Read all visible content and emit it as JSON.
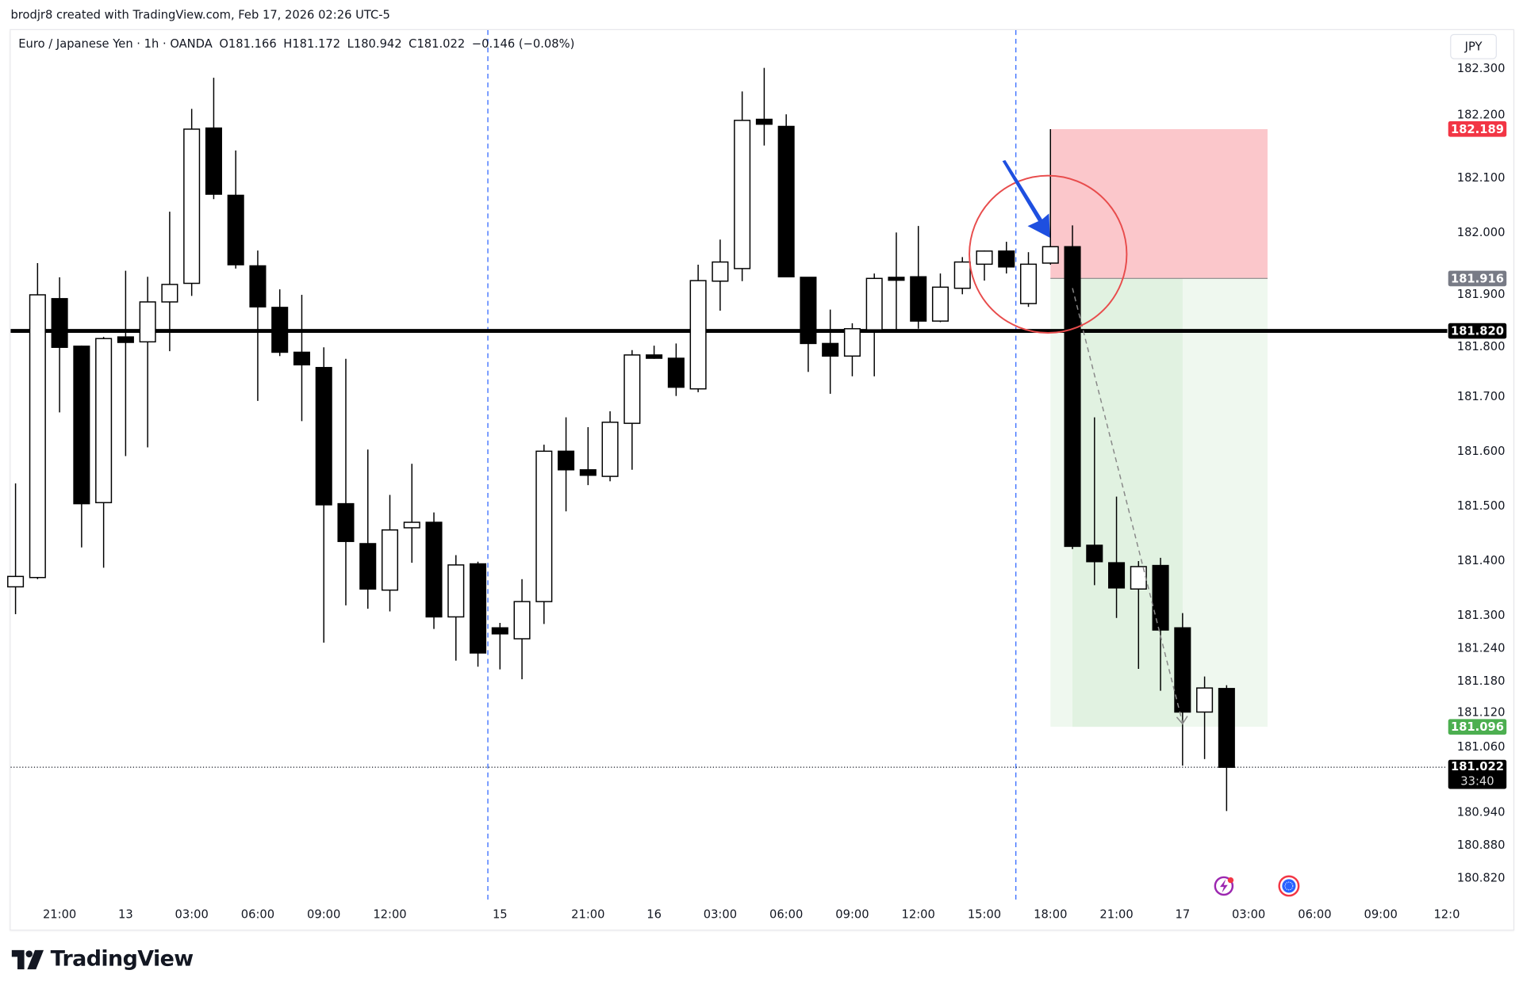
{
  "credit": "brodjr8 created with TradingView.com, Feb 17, 2026 02:26 UTC-5",
  "legend": {
    "symbol": "Euro / Japanese Yen · 1h · OANDA",
    "open": "O181.166",
    "high": "H181.172",
    "low": "L180.942",
    "close": "C181.022",
    "change": "−0.146 (−0.08%)"
  },
  "currency_button": "JPY",
  "footer": {
    "brand": "TradingView",
    "logo_icon": "tradingview-logo-icon"
  },
  "colors": {
    "bull_body": "#ffffff",
    "bear_body": "#000000",
    "stop_zone": "#f23645",
    "target_zone": "#4caf50",
    "entry_tag": "#787b86",
    "drawing_lines": "#2962ff",
    "circle": "#e84c4c"
  },
  "chart_data": {
    "type": "candlestick",
    "timeframe": "1h",
    "ylim": [
      180.78,
      182.36
    ],
    "price_ticks": [
      "182.300",
      "182.200",
      "182.100",
      "182.000",
      "181.900",
      "181.800",
      "181.700",
      "181.600",
      "181.500",
      "181.400",
      "181.300",
      "181.240",
      "181.180",
      "181.120",
      "181.060",
      "180.940",
      "180.880",
      "180.820"
    ],
    "time_ticks": [
      {
        "i": 2,
        "label": "21:00"
      },
      {
        "i": 5,
        "label": "13"
      },
      {
        "i": 8,
        "label": "03:00"
      },
      {
        "i": 11,
        "label": "06:00"
      },
      {
        "i": 14,
        "label": "09:00"
      },
      {
        "i": 17,
        "label": "12:00"
      },
      {
        "i": 22,
        "label": "15"
      },
      {
        "i": 26,
        "label": "21:00"
      },
      {
        "i": 29,
        "label": "16"
      },
      {
        "i": 32,
        "label": "03:00"
      },
      {
        "i": 35,
        "label": "06:00"
      },
      {
        "i": 38,
        "label": "09:00"
      },
      {
        "i": 41,
        "label": "12:00"
      },
      {
        "i": 44,
        "label": "15:00"
      },
      {
        "i": 47,
        "label": "18:00"
      },
      {
        "i": 50,
        "label": "21:00"
      },
      {
        "i": 53,
        "label": "17"
      },
      {
        "i": 56,
        "label": "03:00"
      },
      {
        "i": 59,
        "label": "06:00"
      },
      {
        "i": 62,
        "label": "09:00"
      },
      {
        "i": 65,
        "label": "12:0"
      }
    ],
    "candles": [
      [
        181.352,
        181.541,
        181.302,
        181.371
      ],
      [
        181.369,
        181.944,
        181.366,
        181.886
      ],
      [
        181.879,
        181.918,
        181.671,
        181.79
      ],
      [
        181.792,
        181.793,
        181.424,
        181.504
      ],
      [
        181.506,
        181.809,
        181.387,
        181.806
      ],
      [
        181.809,
        181.93,
        181.591,
        181.799
      ],
      [
        181.8,
        181.919,
        181.607,
        181.873
      ],
      [
        181.873,
        182.038,
        181.783,
        181.905
      ],
      [
        181.907,
        182.226,
        181.884,
        182.189
      ],
      [
        182.191,
        182.283,
        182.061,
        182.07
      ],
      [
        182.068,
        182.15,
        181.934,
        181.941
      ],
      [
        181.939,
        181.967,
        181.692,
        181.864
      ],
      [
        181.863,
        181.896,
        181.774,
        181.781
      ],
      [
        181.781,
        181.886,
        181.655,
        181.758
      ],
      [
        181.753,
        181.79,
        181.25,
        181.502
      ],
      [
        181.504,
        181.769,
        181.318,
        181.435
      ],
      [
        181.431,
        181.603,
        181.312,
        181.348
      ],
      [
        181.346,
        181.52,
        181.307,
        181.456
      ],
      [
        181.46,
        181.577,
        181.396,
        181.47
      ],
      [
        181.47,
        181.488,
        181.275,
        181.297
      ],
      [
        181.297,
        181.41,
        181.217,
        181.392
      ],
      [
        181.394,
        181.398,
        181.206,
        181.231
      ],
      [
        181.277,
        181.286,
        181.201,
        181.266
      ],
      [
        181.257,
        181.366,
        181.183,
        181.325
      ],
      [
        181.325,
        181.612,
        181.284,
        181.6
      ],
      [
        181.6,
        181.662,
        181.49,
        181.566
      ],
      [
        181.566,
        181.644,
        181.538,
        181.556
      ],
      [
        181.554,
        181.673,
        181.545,
        181.653
      ],
      [
        181.651,
        181.785,
        181.566,
        181.776
      ],
      [
        181.776,
        181.793,
        181.769,
        181.77
      ],
      [
        181.77,
        181.797,
        181.701,
        181.717
      ],
      [
        181.714,
        181.941,
        181.708,
        181.912
      ],
      [
        181.911,
        181.987,
        181.857,
        181.946
      ],
      [
        181.934,
        182.258,
        181.911,
        182.205
      ],
      [
        182.207,
        182.301,
        182.159,
        182.198
      ],
      [
        182.194,
        182.216,
        181.919,
        181.919
      ],
      [
        181.918,
        181.918,
        181.745,
        181.797
      ],
      [
        181.797,
        181.859,
        181.705,
        181.774
      ],
      [
        181.774,
        181.834,
        181.737,
        181.824
      ],
      [
        181.822,
        181.925,
        181.737,
        181.916
      ],
      [
        181.918,
        182.0,
        181.822,
        181.914
      ],
      [
        181.919,
        182.012,
        181.824,
        181.838
      ],
      [
        181.838,
        181.925,
        181.836,
        181.9
      ],
      [
        181.898,
        181.955,
        181.887,
        181.946
      ],
      [
        181.942,
        181.967,
        181.912,
        181.966
      ],
      [
        181.966,
        181.983,
        181.925,
        181.937
      ],
      [
        181.87,
        181.964,
        181.864,
        181.942
      ],
      [
        181.944,
        182.189,
        181.941,
        181.974
      ],
      [
        181.974,
        182.013,
        181.421,
        181.426
      ],
      [
        181.428,
        181.662,
        181.355,
        181.398
      ],
      [
        181.396,
        181.517,
        181.295,
        181.35
      ],
      [
        181.348,
        181.399,
        181.202,
        181.389
      ],
      [
        181.391,
        181.405,
        181.162,
        181.273
      ],
      [
        181.277,
        181.304,
        181.025,
        181.123
      ],
      [
        181.123,
        181.188,
        181.037,
        181.167
      ],
      [
        181.166,
        181.172,
        180.942,
        181.022
      ]
    ],
    "horizontal_line": 181.82,
    "last_price": "181.022",
    "countdown": "33:40",
    "position": {
      "side": "short",
      "entry": "181.916",
      "stop": "182.189",
      "target": "181.096"
    },
    "price_tags": [
      {
        "value": "182.189",
        "color": "#f23645"
      },
      {
        "value": "181.916",
        "color": "#787b86"
      },
      {
        "value": "181.820",
        "color": "#000000"
      },
      {
        "value": "181.096",
        "color": "#4caf50"
      }
    ]
  },
  "icons": {
    "events": "lightning-event-icon",
    "economic": "globe-event-icon"
  }
}
